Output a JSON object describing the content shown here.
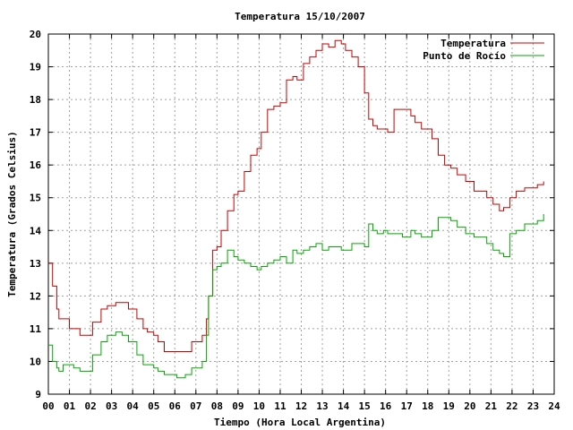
{
  "chart_data": {
    "type": "line",
    "title": "Temperatura 15/10/2007",
    "xlabel": "Tiempo (Hora Local Argentina)",
    "ylabel": "Temperatura (Grados Celsius)",
    "xlim": [
      0,
      24
    ],
    "ylim": [
      9,
      20
    ],
    "grid": true,
    "legend_position": "top-right",
    "x_ticks": [
      "00",
      "01",
      "02",
      "03",
      "04",
      "05",
      "06",
      "07",
      "08",
      "09",
      "10",
      "11",
      "12",
      "13",
      "14",
      "15",
      "16",
      "17",
      "18",
      "19",
      "20",
      "21",
      "22",
      "23",
      "24"
    ],
    "y_ticks": [
      "9",
      "10",
      "11",
      "12",
      "13",
      "14",
      "15",
      "16",
      "17",
      "18",
      "19",
      "20"
    ],
    "series": [
      {
        "name": "Temperatura",
        "color": "#cc0000",
        "x": [
          0.0,
          0.2,
          0.4,
          0.5,
          0.7,
          1.0,
          1.2,
          1.5,
          1.8,
          2.1,
          2.5,
          2.8,
          3.2,
          3.5,
          3.8,
          4.2,
          4.5,
          4.7,
          5.0,
          5.2,
          5.5,
          5.8,
          6.1,
          6.5,
          6.8,
          7.1,
          7.3,
          7.5,
          7.6,
          7.8,
          8.0,
          8.2,
          8.5,
          8.8,
          9.0,
          9.3,
          9.6,
          9.9,
          10.1,
          10.4,
          10.7,
          11.0,
          11.3,
          11.6,
          11.8,
          12.1,
          12.4,
          12.7,
          13.0,
          13.3,
          13.6,
          13.9,
          14.1,
          14.4,
          14.7,
          15.0,
          15.2,
          15.4,
          15.6,
          15.9,
          16.1,
          16.4,
          16.8,
          17.2,
          17.4,
          17.7,
          17.9,
          18.2,
          18.5,
          18.8,
          19.1,
          19.4,
          19.8,
          20.2,
          20.5,
          20.8,
          21.1,
          21.4,
          21.6,
          21.9,
          22.2,
          22.6,
          22.9,
          23.2,
          23.5
        ],
        "y": [
          13.0,
          12.3,
          11.6,
          11.3,
          11.3,
          11.0,
          11.0,
          10.8,
          10.8,
          11.2,
          11.6,
          11.7,
          11.8,
          11.8,
          11.6,
          11.3,
          11.0,
          10.9,
          10.8,
          10.6,
          10.3,
          10.3,
          10.3,
          10.3,
          10.6,
          10.6,
          10.8,
          11.3,
          12.0,
          13.4,
          13.5,
          14.0,
          14.6,
          15.1,
          15.2,
          15.8,
          16.3,
          16.5,
          17.0,
          17.7,
          17.8,
          17.9,
          18.6,
          18.7,
          18.6,
          19.1,
          19.3,
          19.5,
          19.7,
          19.6,
          19.8,
          19.7,
          19.5,
          19.3,
          19.0,
          18.2,
          17.4,
          17.2,
          17.1,
          17.1,
          17.0,
          17.7,
          17.7,
          17.5,
          17.3,
          17.1,
          17.1,
          16.8,
          16.3,
          16.0,
          15.9,
          15.7,
          15.5,
          15.2,
          15.2,
          15.0,
          14.8,
          14.6,
          14.7,
          15.0,
          15.2,
          15.3,
          15.3,
          15.4,
          15.5
        ]
      },
      {
        "name": "Punto de Rocío",
        "color": "#00aa00",
        "x": [
          0.0,
          0.2,
          0.4,
          0.5,
          0.7,
          1.0,
          1.2,
          1.5,
          1.8,
          2.1,
          2.5,
          2.8,
          3.2,
          3.5,
          3.8,
          4.2,
          4.5,
          4.7,
          5.0,
          5.2,
          5.5,
          5.8,
          6.1,
          6.5,
          6.8,
          7.1,
          7.3,
          7.5,
          7.6,
          7.8,
          8.0,
          8.2,
          8.5,
          8.8,
          9.0,
          9.3,
          9.6,
          9.9,
          10.1,
          10.4,
          10.7,
          11.0,
          11.3,
          11.6,
          11.8,
          12.1,
          12.4,
          12.7,
          13.0,
          13.3,
          13.6,
          13.9,
          14.1,
          14.4,
          14.7,
          15.0,
          15.2,
          15.4,
          15.6,
          15.9,
          16.1,
          16.4,
          16.8,
          17.2,
          17.4,
          17.7,
          17.9,
          18.2,
          18.5,
          18.8,
          19.1,
          19.4,
          19.8,
          20.2,
          20.5,
          20.8,
          21.1,
          21.4,
          21.6,
          21.9,
          22.2,
          22.6,
          22.9,
          23.2,
          23.5
        ],
        "y": [
          10.5,
          10.0,
          9.8,
          9.7,
          9.9,
          9.9,
          9.8,
          9.7,
          9.7,
          10.2,
          10.6,
          10.8,
          10.9,
          10.8,
          10.6,
          10.2,
          9.9,
          9.9,
          9.8,
          9.7,
          9.6,
          9.6,
          9.5,
          9.6,
          9.8,
          9.8,
          10.0,
          10.8,
          12.0,
          12.8,
          12.9,
          13.0,
          13.4,
          13.2,
          13.1,
          13.0,
          12.9,
          12.8,
          12.9,
          13.0,
          13.1,
          13.2,
          13.0,
          13.4,
          13.3,
          13.4,
          13.5,
          13.6,
          13.4,
          13.5,
          13.5,
          13.4,
          13.4,
          13.6,
          13.6,
          13.5,
          14.2,
          14.0,
          13.9,
          14.0,
          13.9,
          13.9,
          13.8,
          14.0,
          13.9,
          13.8,
          13.8,
          14.0,
          14.4,
          14.4,
          14.3,
          14.1,
          13.9,
          13.8,
          13.8,
          13.6,
          13.4,
          13.3,
          13.2,
          13.9,
          14.0,
          14.2,
          14.2,
          14.3,
          14.5
        ]
      }
    ]
  }
}
